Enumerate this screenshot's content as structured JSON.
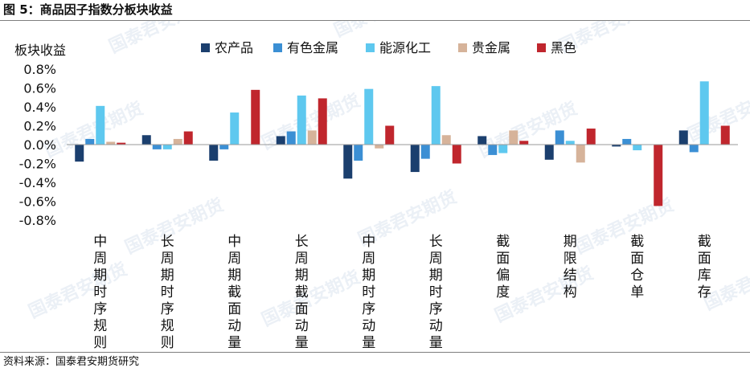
{
  "figure": {
    "title": "图 5：商品因子指数分板块收益",
    "source": "资料来源：国泰君安期货研究",
    "watermark": "国泰君安期货"
  },
  "colors": {
    "农产品": "#1b3f6e",
    "有色金属": "#3b8fd4",
    "能源化工": "#5ec8ef",
    "贵金属": "#d6b39a",
    "黑色": "#c0262d",
    "axis": "#9a9a9a",
    "watermark": "#c5d3e4"
  },
  "chart_data": {
    "type": "bar",
    "title": "",
    "ylabel": "板块收益",
    "xlabel": "",
    "ylim": [
      -0.8,
      0.8
    ],
    "yticks": [
      "0.8%",
      "0.6%",
      "0.4%",
      "0.2%",
      "0.0%",
      "-0.2%",
      "-0.4%",
      "-0.6%",
      "-0.8%"
    ],
    "legend_position": "top",
    "grid": false,
    "categories": [
      "中周期时序规则",
      "长周期时序规则",
      "中周期截面动量",
      "长周期截面动量",
      "中周期时序动量",
      "长周期时序动量",
      "截面偏度",
      "期限结构",
      "截面仓单",
      "截面库存"
    ],
    "series": [
      {
        "name": "农产品",
        "values": [
          -0.18,
          0.1,
          -0.17,
          0.09,
          -0.36,
          -0.29,
          0.09,
          -0.16,
          -0.02,
          0.15
        ]
      },
      {
        "name": "有色金属",
        "values": [
          0.06,
          -0.05,
          -0.05,
          0.14,
          -0.17,
          -0.15,
          -0.11,
          0.15,
          0.06,
          -0.08
        ]
      },
      {
        "name": "能源化工",
        "values": [
          0.41,
          -0.05,
          0.34,
          0.52,
          0.59,
          0.62,
          -0.09,
          0.04,
          -0.06,
          0.67
        ]
      },
      {
        "name": "贵金属",
        "values": [
          0.03,
          0.06,
          0.0,
          0.15,
          -0.04,
          0.1,
          0.15,
          -0.19,
          0.0,
          0.0
        ]
      },
      {
        "name": "黑色",
        "values": [
          0.02,
          0.14,
          0.58,
          0.49,
          0.2,
          -0.2,
          0.04,
          0.17,
          -0.65,
          0.2
        ]
      }
    ]
  }
}
